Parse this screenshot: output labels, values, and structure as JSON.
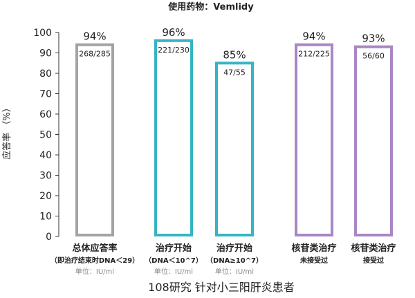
{
  "chart_data": {
    "type": "bar",
    "title": "使用药物：Vemlidy",
    "ylabel": "应答率 （%）",
    "ylim": [
      0,
      100
    ],
    "yticks": [
      0,
      10,
      20,
      30,
      40,
      50,
      60,
      70,
      80,
      90,
      100
    ],
    "footer": "108研究 针对小三阳肝炎患者",
    "unit_label": "单位：IU/ml",
    "bars": [
      {
        "pct_label": "94%",
        "value": 94,
        "ratio": "268/285",
        "cat_line1": "总体应答率",
        "cat_line2": "（即治疗结束时DNA＜29）",
        "unit": "单位：IU/ml",
        "color": "#a3a3a3"
      },
      {
        "pct_label": "96%",
        "value": 96,
        "ratio": "221/230",
        "cat_line1": "治疗开始",
        "cat_line2": "（DNA＜10^7）",
        "unit": "单位：IU/ml",
        "color": "#35b5c3"
      },
      {
        "pct_label": "85%",
        "value": 85,
        "ratio": "47/55",
        "cat_line1": "治疗开始",
        "cat_line2": "（DNA≥10^7）",
        "unit": "单位：IU/ml",
        "color": "#35b5c3"
      },
      {
        "pct_label": "94%",
        "value": 94,
        "ratio": "212/225",
        "cat_line1": "核苷类治疗",
        "cat_line2": "未接受过",
        "unit": "",
        "color": "#a986c4"
      },
      {
        "pct_label": "93%",
        "value": 93,
        "ratio": "56/60",
        "cat_line1": "核苷类治疗",
        "cat_line2": "接受过",
        "unit": "",
        "color": "#a986c4"
      }
    ]
  }
}
